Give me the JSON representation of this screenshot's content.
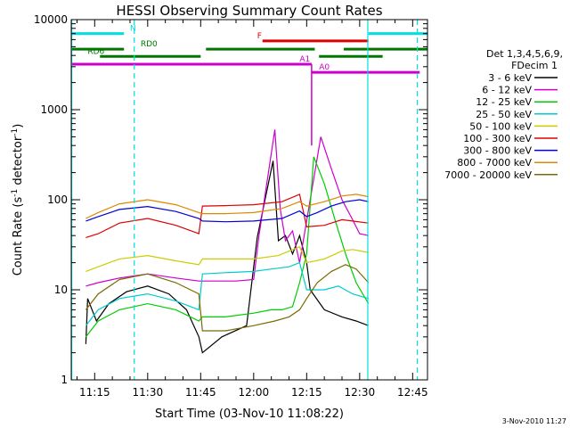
{
  "chart_data": {
    "type": "line",
    "title": "HESSI Observing Summary Count Rates",
    "xlabel": "Start Time (03-Nov-10 11:08:22)",
    "ylabel_main": "Count Rate (s",
    "ylabel_sup1": "-1",
    "ylabel_mid": " detector",
    "ylabel_sup2": "-1",
    "ylabel_end": ")",
    "y_scale": "log",
    "ylim": [
      1,
      10000
    ],
    "xlim_minutes": [
      668.37,
      769.2
    ],
    "x_ticks": [
      {
        "minute": 675,
        "label": "11:15"
      },
      {
        "minute": 690,
        "label": "11:30"
      },
      {
        "minute": 705,
        "label": "11:45"
      },
      {
        "minute": 720,
        "label": "12:00"
      },
      {
        "minute": 735,
        "label": "12:15"
      },
      {
        "minute": 750,
        "label": "12:30"
      },
      {
        "minute": 765,
        "label": "12:45"
      }
    ],
    "y_ticks": [
      {
        "value": 1,
        "label": "1"
      },
      {
        "value": 10,
        "label": "10"
      },
      {
        "value": 100,
        "label": "100"
      },
      {
        "value": 1000,
        "label": "1000"
      },
      {
        "value": 10000,
        "label": "10000"
      }
    ],
    "legend_title_1": "Det 1,3,4,5,6,9,",
    "legend_title_2": "FDecim 1",
    "legend_placement": "right",
    "series": [
      {
        "name": "3 - 6 keV",
        "color": "#000000",
        "x": [
          672.5,
          673,
          675.5,
          679,
          684,
          690,
          696,
          701,
          704.5,
          705.5,
          711,
          718,
          721,
          725.5,
          727,
          729,
          731,
          733,
          735,
          736,
          740,
          745,
          749,
          752.5
        ],
        "y": [
          2.5,
          8,
          4.5,
          7,
          9.5,
          11,
          9,
          6,
          3,
          2,
          3,
          4,
          38,
          270,
          35,
          40,
          25,
          40,
          20,
          10,
          6,
          5,
          4.5,
          4
        ]
      },
      {
        "name": "6 - 12 keV",
        "color": "#cc00cc",
        "x": [
          672.5,
          676,
          682,
          690,
          698,
          704.5,
          705.5,
          715,
          720,
          721.5,
          726,
          727.5,
          729,
          731,
          733,
          736,
          739,
          742,
          745,
          748,
          750,
          752.5
        ],
        "y": [
          11,
          12,
          13.5,
          15,
          13.5,
          12.5,
          12.5,
          12.5,
          13,
          40,
          600,
          80,
          35,
          45,
          20,
          100,
          500,
          220,
          100,
          60,
          42,
          40
        ]
      },
      {
        "name": "12 - 25 keV",
        "color": "#00cc00",
        "x": [
          672.5,
          676,
          682,
          690,
          698,
          704.5,
          705.5,
          712,
          720,
          725,
          728,
          731,
          733,
          735,
          737,
          740,
          743,
          746,
          749,
          752.5
        ],
        "y": [
          3,
          4.5,
          6,
          7,
          6,
          4.5,
          5,
          5,
          5.5,
          6,
          6,
          6.5,
          12,
          25,
          300,
          150,
          60,
          25,
          12,
          7
        ]
      },
      {
        "name": "25 - 50 keV",
        "color": "#00cccc",
        "x": [
          672.5,
          676,
          682,
          690,
          698,
          704.5,
          705.5,
          712,
          720,
          725,
          730,
          733,
          735,
          740,
          744,
          748,
          752.5
        ],
        "y": [
          4,
          6,
          8,
          9,
          7.5,
          6,
          15,
          15.5,
          16,
          17,
          18,
          20,
          10,
          10,
          11,
          9,
          8
        ]
      },
      {
        "name": "50 - 100 keV",
        "color": "#cccc00",
        "x": [
          672.5,
          676,
          682,
          690,
          698,
          704.5,
          705.5,
          712,
          720,
          727,
          733,
          735,
          740,
          745,
          748,
          752.5
        ],
        "y": [
          16,
          18,
          22,
          24,
          21,
          19,
          22,
          22,
          22,
          24,
          30,
          20,
          22,
          27,
          28,
          26
        ]
      },
      {
        "name": "100 - 300 keV",
        "color": "#dd0000",
        "x": [
          672.5,
          676,
          682,
          690,
          698,
          704.5,
          705.5,
          712,
          720,
          728,
          733,
          735,
          740,
          745,
          748,
          752.5
        ],
        "y": [
          38,
          42,
          55,
          62,
          52,
          42,
          85,
          86,
          88,
          95,
          115,
          50,
          52,
          60,
          58,
          55
        ]
      },
      {
        "name": "300 - 800 keV",
        "color": "#0000dd",
        "x": [
          672.5,
          676,
          682,
          690,
          698,
          704.5,
          705.5,
          712,
          720,
          728,
          733,
          735,
          738,
          742,
          746,
          750,
          752.5
        ],
        "y": [
          58,
          65,
          78,
          84,
          74,
          62,
          58,
          57,
          58,
          62,
          75,
          65,
          72,
          85,
          95,
          100,
          95
        ]
      },
      {
        "name": "800 - 7000 keV",
        "color": "#dd8800",
        "x": [
          672.5,
          676,
          682,
          690,
          698,
          704.5,
          705.5,
          712,
          720,
          728,
          733,
          735,
          740,
          745,
          749,
          752.5
        ],
        "y": [
          62,
          72,
          90,
          100,
          88,
          72,
          70,
          70,
          72,
          80,
          95,
          85,
          95,
          110,
          115,
          108
        ]
      },
      {
        "name": "7000 - 20000 keV",
        "color": "#7a6a00",
        "x": [
          672.5,
          676,
          682,
          690,
          698,
          704.5,
          705.5,
          712,
          720,
          726,
          730,
          733,
          735,
          738,
          742,
          746,
          749,
          752.5
        ],
        "y": [
          6,
          9,
          13,
          15,
          12,
          9,
          3.5,
          3.5,
          4,
          4.5,
          5,
          6,
          8,
          12,
          16,
          19,
          17,
          12
        ]
      }
    ],
    "state_bars": [
      {
        "label": "N",
        "color": "#00e0e0",
        "level": 7000,
        "segments": [
          [
            668.37,
            683.3
          ],
          [
            752.5,
            769.2
          ]
        ],
        "label_minute": 685
      },
      {
        "label": "F",
        "color": "#dd0000",
        "level": 5800,
        "segments": [
          [
            722.5,
            752.5
          ]
        ],
        "label_minute": 721
      },
      {
        "label": "RD0",
        "color": "#007700",
        "level": 4700,
        "segments": [
          [
            668.37,
            683.3
          ],
          [
            706.5,
            737.3
          ],
          [
            745.5,
            769.2
          ]
        ],
        "label_minute": 688
      },
      {
        "label": "RD6",
        "color": "#007700",
        "level": 3900,
        "segments": [
          [
            676.5,
            705
          ],
          [
            738.5,
            756.5
          ]
        ],
        "label_minute": 673
      },
      {
        "label": "A1",
        "color": "#cc00cc",
        "level": 3200,
        "segments": [
          [
            668.37,
            736.4
          ]
        ],
        "label_minute": 733
      },
      {
        "label": "A0",
        "color": "#cc00cc",
        "level": 2600,
        "segments": [
          [
            736.4,
            767
          ]
        ],
        "label_minute": 738.5
      }
    ],
    "vertical_markers": [
      {
        "minute": 668.5,
        "style": "solid",
        "color": "#00e0e0"
      },
      {
        "minute": 686.2,
        "style": "dashed",
        "color": "#00e0e0"
      },
      {
        "minute": 752.3,
        "style": "solid",
        "color": "#00e0e0"
      },
      {
        "minute": 766.3,
        "style": "dashed",
        "color": "#00e0e0"
      }
    ]
  },
  "footer": {
    "date_stamp": "3-Nov-2010 11:27"
  }
}
